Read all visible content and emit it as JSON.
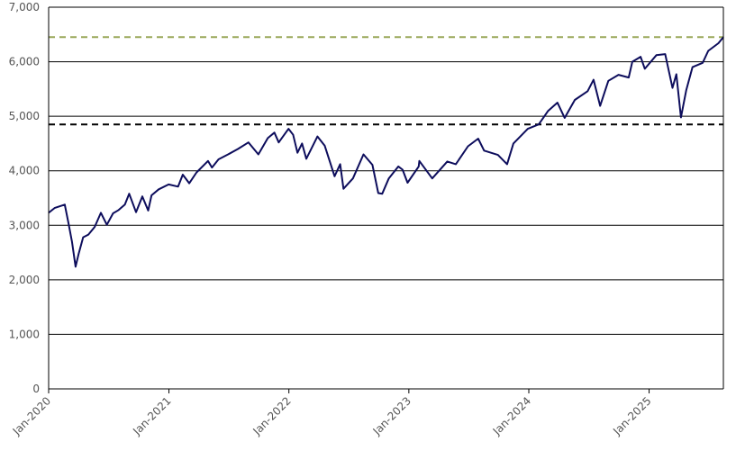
{
  "chart_data": {
    "type": "line",
    "title": "",
    "xlabel": "",
    "ylabel": "",
    "ylim": [
      0,
      7000
    ],
    "xlim": [
      "2020-01",
      "2025-08"
    ],
    "y_ticks": [
      "0",
      "1,000",
      "2,000",
      "3,000",
      "4,000",
      "5,000",
      "6,000",
      "7,000"
    ],
    "x_ticks": [
      "Jan-2020",
      "Jan-2021",
      "Jan-2022",
      "Jan-2023",
      "Jan-2024",
      "Jan-2025"
    ],
    "grid": "horizontal",
    "legend": "none",
    "series": [
      {
        "color": "#0d0d5c",
        "style": "solid",
        "points": [
          [
            "2020-01-01",
            3230
          ],
          [
            "2020-01-20",
            3320
          ],
          [
            "2020-02-19",
            3380
          ],
          [
            "2020-03-01",
            3050
          ],
          [
            "2020-03-12",
            2700
          ],
          [
            "2020-03-23",
            2240
          ],
          [
            "2020-04-01",
            2470
          ],
          [
            "2020-04-15",
            2780
          ],
          [
            "2020-05-01",
            2830
          ],
          [
            "2020-05-20",
            2970
          ],
          [
            "2020-06-08",
            3230
          ],
          [
            "2020-06-26",
            3010
          ],
          [
            "2020-07-15",
            3220
          ],
          [
            "2020-08-01",
            3280
          ],
          [
            "2020-08-20",
            3380
          ],
          [
            "2020-09-02",
            3580
          ],
          [
            "2020-09-23",
            3240
          ],
          [
            "2020-10-12",
            3530
          ],
          [
            "2020-10-30",
            3270
          ],
          [
            "2020-11-09",
            3550
          ],
          [
            "2020-12-01",
            3660
          ],
          [
            "2020-12-31",
            3750
          ],
          [
            "2021-01-29",
            3710
          ],
          [
            "2021-02-12",
            3930
          ],
          [
            "2021-03-04",
            3770
          ],
          [
            "2021-03-26",
            3970
          ],
          [
            "2021-04-30",
            4180
          ],
          [
            "2021-05-12",
            4060
          ],
          [
            "2021-06-01",
            4210
          ],
          [
            "2021-06-30",
            4300
          ],
          [
            "2021-07-30",
            4400
          ],
          [
            "2021-08-31",
            4520
          ],
          [
            "2021-09-30",
            4300
          ],
          [
            "2021-10-29",
            4600
          ],
          [
            "2021-11-18",
            4700
          ],
          [
            "2021-12-01",
            4520
          ],
          [
            "2021-12-31",
            4770
          ],
          [
            "2022-01-14",
            4660
          ],
          [
            "2022-01-27",
            4330
          ],
          [
            "2022-02-10",
            4500
          ],
          [
            "2022-02-23",
            4220
          ],
          [
            "2022-03-29",
            4630
          ],
          [
            "2022-04-20",
            4460
          ],
          [
            "2022-05-20",
            3900
          ],
          [
            "2022-06-06",
            4120
          ],
          [
            "2022-06-16",
            3670
          ],
          [
            "2022-07-15",
            3860
          ],
          [
            "2022-08-16",
            4300
          ],
          [
            "2022-09-12",
            4110
          ],
          [
            "2022-09-30",
            3590
          ],
          [
            "2022-10-12",
            3580
          ],
          [
            "2022-11-01",
            3860
          ],
          [
            "2022-11-30",
            4080
          ],
          [
            "2022-12-13",
            4020
          ],
          [
            "2022-12-28",
            3780
          ],
          [
            "2023-01-31",
            4080
          ],
          [
            "2023-02-02",
            4180
          ],
          [
            "2023-03-13",
            3860
          ],
          [
            "2023-04-28",
            4170
          ],
          [
            "2023-05-24",
            4120
          ],
          [
            "2023-06-30",
            4450
          ],
          [
            "2023-07-31",
            4590
          ],
          [
            "2023-08-18",
            4370
          ],
          [
            "2023-09-29",
            4290
          ],
          [
            "2023-10-27",
            4120
          ],
          [
            "2023-11-15",
            4500
          ],
          [
            "2023-12-29",
            4770
          ],
          [
            "2024-01-31",
            4850
          ],
          [
            "2024-02-29",
            5100
          ],
          [
            "2024-03-28",
            5250
          ],
          [
            "2024-04-19",
            4970
          ],
          [
            "2024-05-20",
            5300
          ],
          [
            "2024-06-28",
            5460
          ],
          [
            "2024-07-16",
            5670
          ],
          [
            "2024-08-05",
            5190
          ],
          [
            "2024-08-30",
            5650
          ],
          [
            "2024-09-30",
            5760
          ],
          [
            "2024-10-31",
            5710
          ],
          [
            "2024-11-11",
            6000
          ],
          [
            "2024-12-06",
            6090
          ],
          [
            "2024-12-19",
            5870
          ],
          [
            "2025-01-23",
            6120
          ],
          [
            "2025-02-19",
            6140
          ],
          [
            "2025-03-13",
            5520
          ],
          [
            "2025-03-25",
            5770
          ],
          [
            "2025-04-08",
            4980
          ],
          [
            "2025-04-24",
            5480
          ],
          [
            "2025-05-13",
            5900
          ],
          [
            "2025-06-13",
            5980
          ],
          [
            "2025-06-30",
            6200
          ],
          [
            "2025-07-31",
            6340
          ],
          [
            "2025-08-15",
            6450
          ]
        ]
      },
      {
        "color": "#000000",
        "style": "dashed",
        "points": [
          [
            "2020-01-01",
            4850
          ],
          [
            "2025-08-15",
            4850
          ]
        ]
      },
      {
        "color": "#9aa85a",
        "style": "dashed",
        "points": [
          [
            "2020-01-01",
            6450
          ],
          [
            "2025-08-15",
            6450
          ]
        ]
      }
    ]
  }
}
